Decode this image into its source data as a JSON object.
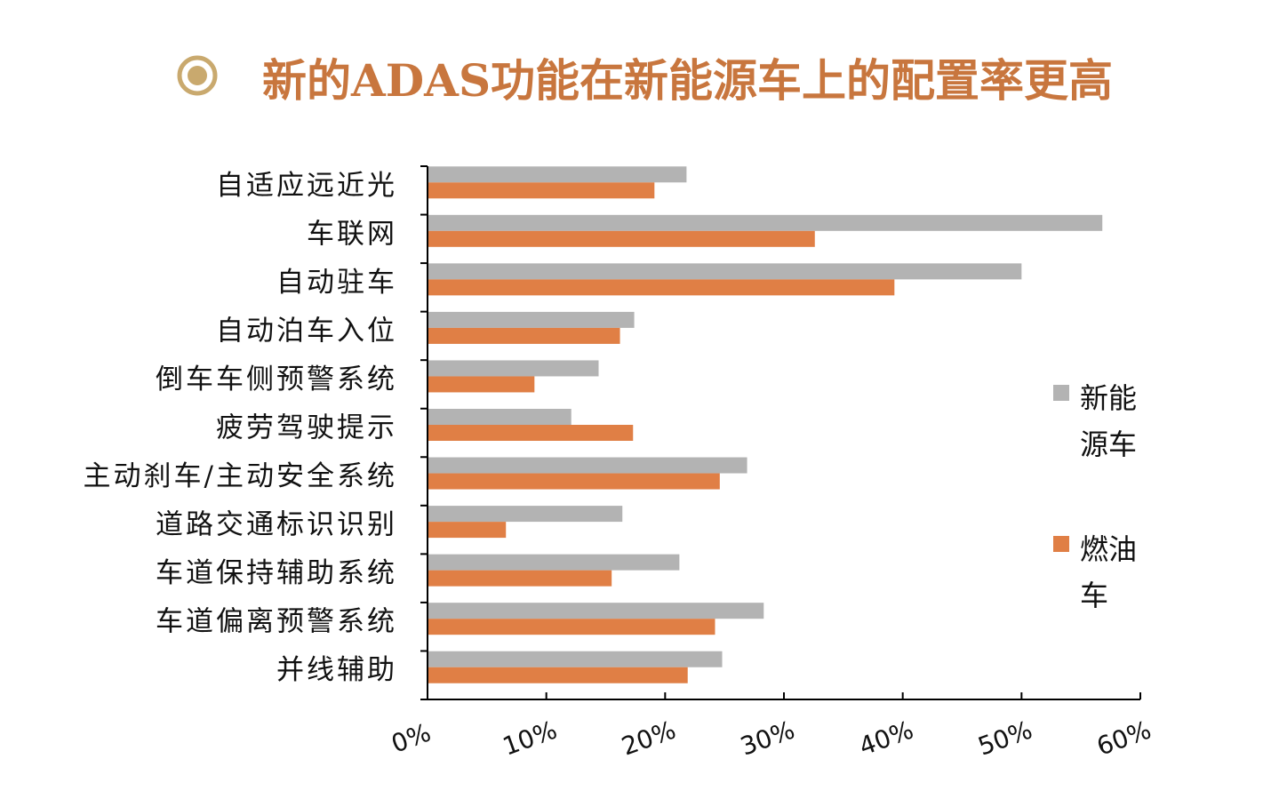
{
  "chart_data": {
    "type": "hbar",
    "title": "新的ADAS功能在新能源车上的配置率更高",
    "categories": [
      "自适应远近光",
      "车联网",
      "自动驻车",
      "自动泊车入位",
      "倒车车侧预警系统",
      "疲劳驾驶提示",
      "主动刹车/主动安全系统",
      "道路交通标识识别",
      "车道保持辅助系统",
      "车道偏离预警系统",
      "并线辅助"
    ],
    "series": [
      {
        "name": "新能源车",
        "color": "#b3b3b3",
        "values": [
          21.8,
          56.8,
          50.0,
          17.4,
          14.4,
          12.1,
          26.9,
          16.4,
          21.2,
          28.3,
          24.8
        ]
      },
      {
        "name": "燃油车",
        "color": "#e07f45",
        "values": [
          19.1,
          32.6,
          39.3,
          16.2,
          9.0,
          17.3,
          24.6,
          6.6,
          15.5,
          24.2,
          21.9
        ]
      }
    ],
    "xlim": [
      0,
      60
    ],
    "xticks": [
      {
        "value": 0,
        "label": "0%"
      },
      {
        "value": 10,
        "label": "10%"
      },
      {
        "value": 20,
        "label": "20%"
      },
      {
        "value": 30,
        "label": "30%"
      },
      {
        "value": 40,
        "label": "40%"
      },
      {
        "value": 50,
        "label": "50%"
      },
      {
        "value": 60,
        "label": "60%"
      }
    ],
    "legend": "right"
  }
}
